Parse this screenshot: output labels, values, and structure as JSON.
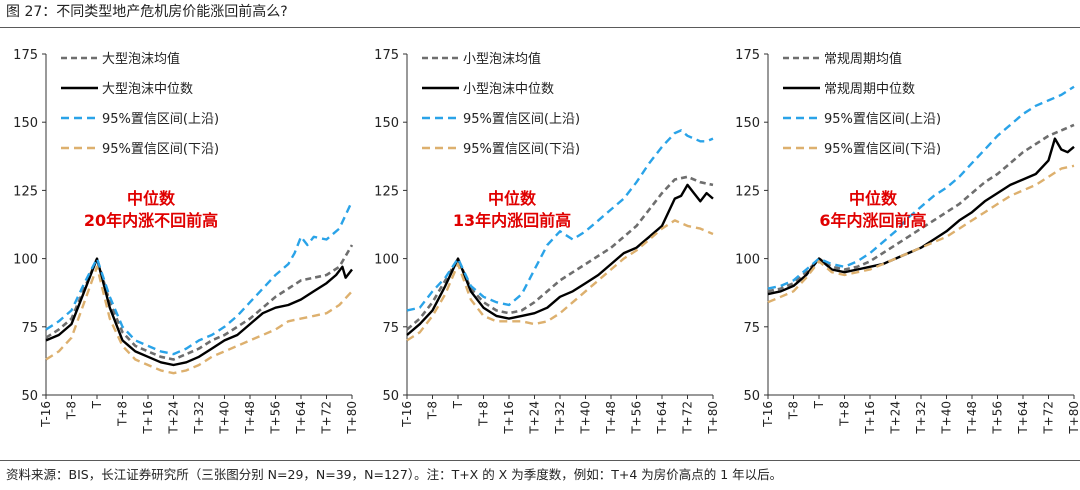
{
  "figure_title": "图 27：不同类型地产危机房价能涨回前高么?",
  "source_note": "资料来源：BIS，长江证券研究所（三张图分别 N=29，N=39，N=127）。注：T+X 的 X 为季度数，例如：T+4 为房价高点的 1 年以后。",
  "colors": {
    "mean": "#6e6e6e",
    "median": "#000000",
    "upper": "#2aa3e8",
    "lower": "#ddb06e",
    "annotation": "#e00000",
    "axis": "#333333"
  },
  "chart_data": [
    {
      "type": "line",
      "ylim": [
        50,
        175
      ],
      "yticks": [
        50,
        75,
        100,
        125,
        150,
        175
      ],
      "xlim": [
        -16,
        80
      ],
      "xticks": [
        -16,
        -8,
        0,
        8,
        16,
        24,
        32,
        40,
        48,
        56,
        64,
        72,
        80
      ],
      "xtick_labels": [
        "T-16",
        "T-8",
        "T",
        "T+8",
        "T+16",
        "T+24",
        "T+32",
        "T+40",
        "T+48",
        "T+56",
        "T+64",
        "T+72",
        "T+80"
      ],
      "legend_position": "top-left",
      "annotation": [
        "中位数",
        "20年内涨不回前高"
      ],
      "series": [
        {
          "name": "大型泡沫均值",
          "style": "mean",
          "x": [
            -16,
            -12,
            -8,
            -4,
            0,
            4,
            8,
            12,
            16,
            20,
            24,
            28,
            32,
            36,
            40,
            44,
            48,
            52,
            56,
            60,
            64,
            68,
            72,
            76,
            80
          ],
          "y": [
            71,
            74,
            78,
            89,
            100,
            84,
            73,
            68,
            66,
            64,
            63,
            65,
            67,
            70,
            72,
            75,
            78,
            82,
            86,
            89,
            92,
            93,
            94,
            97,
            105
          ]
        },
        {
          "name": "大型泡沫中位数",
          "style": "median",
          "x": [
            -16,
            -12,
            -8,
            -4,
            0,
            4,
            8,
            12,
            16,
            20,
            24,
            28,
            32,
            36,
            40,
            44,
            48,
            52,
            56,
            60,
            64,
            68,
            72,
            75,
            77,
            78,
            80
          ],
          "y": [
            70,
            72,
            76,
            88,
            100,
            82,
            70,
            66,
            64,
            62,
            61,
            62,
            64,
            67,
            70,
            72,
            76,
            80,
            82,
            83,
            85,
            88,
            91,
            94,
            97,
            93,
            96
          ]
        },
        {
          "name": "95%置信区间(上沿)",
          "style": "upper",
          "x": [
            -16,
            -12,
            -8,
            -4,
            0,
            4,
            8,
            12,
            16,
            20,
            24,
            28,
            32,
            36,
            40,
            44,
            48,
            52,
            56,
            60,
            62,
            64,
            66,
            68,
            72,
            76,
            80
          ],
          "y": [
            74,
            77,
            81,
            91,
            100,
            86,
            75,
            70,
            68,
            66,
            65,
            67,
            70,
            72,
            75,
            79,
            84,
            89,
            94,
            98,
            102,
            108,
            105,
            108,
            107,
            111,
            121
          ]
        },
        {
          "name": "95%置信区间(下沿)",
          "style": "lower",
          "x": [
            -16,
            -12,
            -8,
            -4,
            0,
            4,
            8,
            12,
            16,
            20,
            24,
            28,
            32,
            36,
            40,
            44,
            48,
            52,
            56,
            60,
            64,
            68,
            72,
            76,
            80
          ],
          "y": [
            63,
            66,
            71,
            84,
            97,
            78,
            68,
            63,
            61,
            59,
            58,
            59,
            61,
            64,
            66,
            68,
            70,
            72,
            74,
            77,
            78,
            79,
            80,
            83,
            88
          ]
        }
      ]
    },
    {
      "type": "line",
      "ylim": [
        50,
        175
      ],
      "yticks": [
        50,
        75,
        100,
        125,
        150,
        175
      ],
      "xlim": [
        -16,
        80
      ],
      "xticks": [
        -16,
        -8,
        0,
        8,
        16,
        24,
        32,
        40,
        48,
        56,
        64,
        72,
        80
      ],
      "xtick_labels": [
        "T-16",
        "T-8",
        "T",
        "T+8",
        "T+16",
        "T+24",
        "T+32",
        "T+40",
        "T+48",
        "T+56",
        "T+64",
        "T+72",
        "T+80"
      ],
      "legend_position": "top-left",
      "annotation": [
        "中位数",
        "13年内涨回前高"
      ],
      "series": [
        {
          "name": "小型泡沫均值",
          "style": "mean",
          "x": [
            -16,
            -12,
            -8,
            -4,
            0,
            4,
            8,
            12,
            16,
            20,
            24,
            28,
            32,
            36,
            40,
            44,
            48,
            52,
            56,
            60,
            64,
            68,
            72,
            76,
            80
          ],
          "y": [
            74,
            78,
            84,
            92,
            100,
            89,
            84,
            81,
            80,
            81,
            84,
            88,
            92,
            95,
            98,
            101,
            104,
            108,
            112,
            118,
            124,
            129,
            130,
            128,
            127
          ]
        },
        {
          "name": "小型泡沫中位数",
          "style": "median",
          "x": [
            -16,
            -12,
            -8,
            -4,
            0,
            4,
            8,
            12,
            16,
            20,
            24,
            28,
            32,
            36,
            40,
            44,
            48,
            52,
            56,
            60,
            64,
            66,
            68,
            70,
            72,
            74,
            76,
            78,
            80
          ],
          "y": [
            72,
            76,
            81,
            90,
            100,
            88,
            82,
            79,
            78,
            79,
            80,
            82,
            86,
            88,
            91,
            94,
            98,
            102,
            104,
            108,
            112,
            117,
            122,
            123,
            127,
            124,
            121,
            124,
            122
          ]
        },
        {
          "name": "95%置信区间(上沿)",
          "style": "upper",
          "x": [
            -16,
            -12,
            -8,
            -4,
            0,
            4,
            8,
            12,
            16,
            20,
            24,
            28,
            32,
            36,
            40,
            44,
            48,
            52,
            56,
            60,
            64,
            68,
            70,
            72,
            76,
            78,
            80
          ],
          "y": [
            81,
            82,
            88,
            93,
            100,
            90,
            86,
            84,
            83,
            87,
            96,
            105,
            110,
            107,
            110,
            114,
            118,
            122,
            128,
            135,
            141,
            146,
            147,
            145,
            143,
            143,
            144
          ]
        },
        {
          "name": "95%置信区间(下沿)",
          "style": "lower",
          "x": [
            -16,
            -12,
            -8,
            -4,
            0,
            4,
            8,
            12,
            16,
            20,
            24,
            28,
            32,
            36,
            40,
            44,
            48,
            52,
            56,
            60,
            64,
            68,
            72,
            76,
            80
          ],
          "y": [
            70,
            73,
            79,
            87,
            98,
            85,
            79,
            77,
            77,
            77,
            76,
            77,
            80,
            84,
            88,
            92,
            96,
            100,
            103,
            107,
            111,
            114,
            112,
            111,
            109
          ]
        }
      ]
    },
    {
      "type": "line",
      "ylim": [
        50,
        175
      ],
      "yticks": [
        50,
        75,
        100,
        125,
        150,
        175
      ],
      "xlim": [
        -16,
        80
      ],
      "xticks": [
        -16,
        -8,
        0,
        8,
        16,
        24,
        32,
        40,
        48,
        56,
        64,
        72,
        80
      ],
      "xtick_labels": [
        "T-16",
        "T-8",
        "T",
        "T+8",
        "T+16",
        "T+24",
        "T+32",
        "T+40",
        "T+48",
        "T+56",
        "T+64",
        "T+72",
        "T+80"
      ],
      "legend_position": "top-left",
      "annotation": [
        "中位数",
        "6年内涨回前高"
      ],
      "series": [
        {
          "name": "常规周期均值",
          "style": "mean",
          "x": [
            -16,
            -12,
            -8,
            -4,
            0,
            4,
            8,
            12,
            16,
            20,
            24,
            28,
            32,
            36,
            40,
            44,
            48,
            52,
            56,
            60,
            64,
            68,
            72,
            76,
            80
          ],
          "y": [
            88,
            89,
            91,
            95,
            100,
            97,
            96,
            97,
            99,
            102,
            105,
            108,
            111,
            114,
            117,
            120,
            124,
            128,
            131,
            135,
            139,
            142,
            145,
            147,
            149
          ]
        },
        {
          "name": "常规周期中位数",
          "style": "median",
          "x": [
            -16,
            -12,
            -8,
            -4,
            0,
            4,
            8,
            12,
            16,
            20,
            24,
            28,
            32,
            36,
            40,
            44,
            48,
            52,
            56,
            60,
            64,
            68,
            72,
            74,
            76,
            78,
            80
          ],
          "y": [
            87,
            88,
            90,
            94,
            100,
            96,
            95,
            96,
            97,
            98,
            100,
            102,
            104,
            107,
            110,
            114,
            117,
            121,
            124,
            127,
            129,
            131,
            136,
            144,
            140,
            139,
            141
          ]
        },
        {
          "name": "95%置信区间(上沿)",
          "style": "upper",
          "x": [
            -16,
            -12,
            -8,
            -4,
            0,
            4,
            8,
            12,
            16,
            20,
            24,
            28,
            32,
            36,
            40,
            44,
            48,
            52,
            56,
            60,
            64,
            68,
            72,
            76,
            80
          ],
          "y": [
            89,
            90,
            92,
            96,
            100,
            98,
            97,
            99,
            102,
            106,
            110,
            115,
            119,
            123,
            126,
            130,
            135,
            140,
            145,
            149,
            153,
            156,
            158,
            160,
            163
          ]
        },
        {
          "name": "95%置信区间(下沿)",
          "style": "lower",
          "x": [
            -16,
            -12,
            -8,
            -4,
            0,
            4,
            8,
            12,
            16,
            20,
            24,
            28,
            32,
            36,
            40,
            44,
            48,
            52,
            56,
            60,
            64,
            68,
            72,
            76,
            80
          ],
          "y": [
            84,
            86,
            88,
            93,
            99,
            95,
            94,
            95,
            96,
            98,
            100,
            102,
            104,
            106,
            108,
            111,
            114,
            117,
            120,
            123,
            125,
            127,
            130,
            133,
            134
          ]
        }
      ]
    }
  ]
}
